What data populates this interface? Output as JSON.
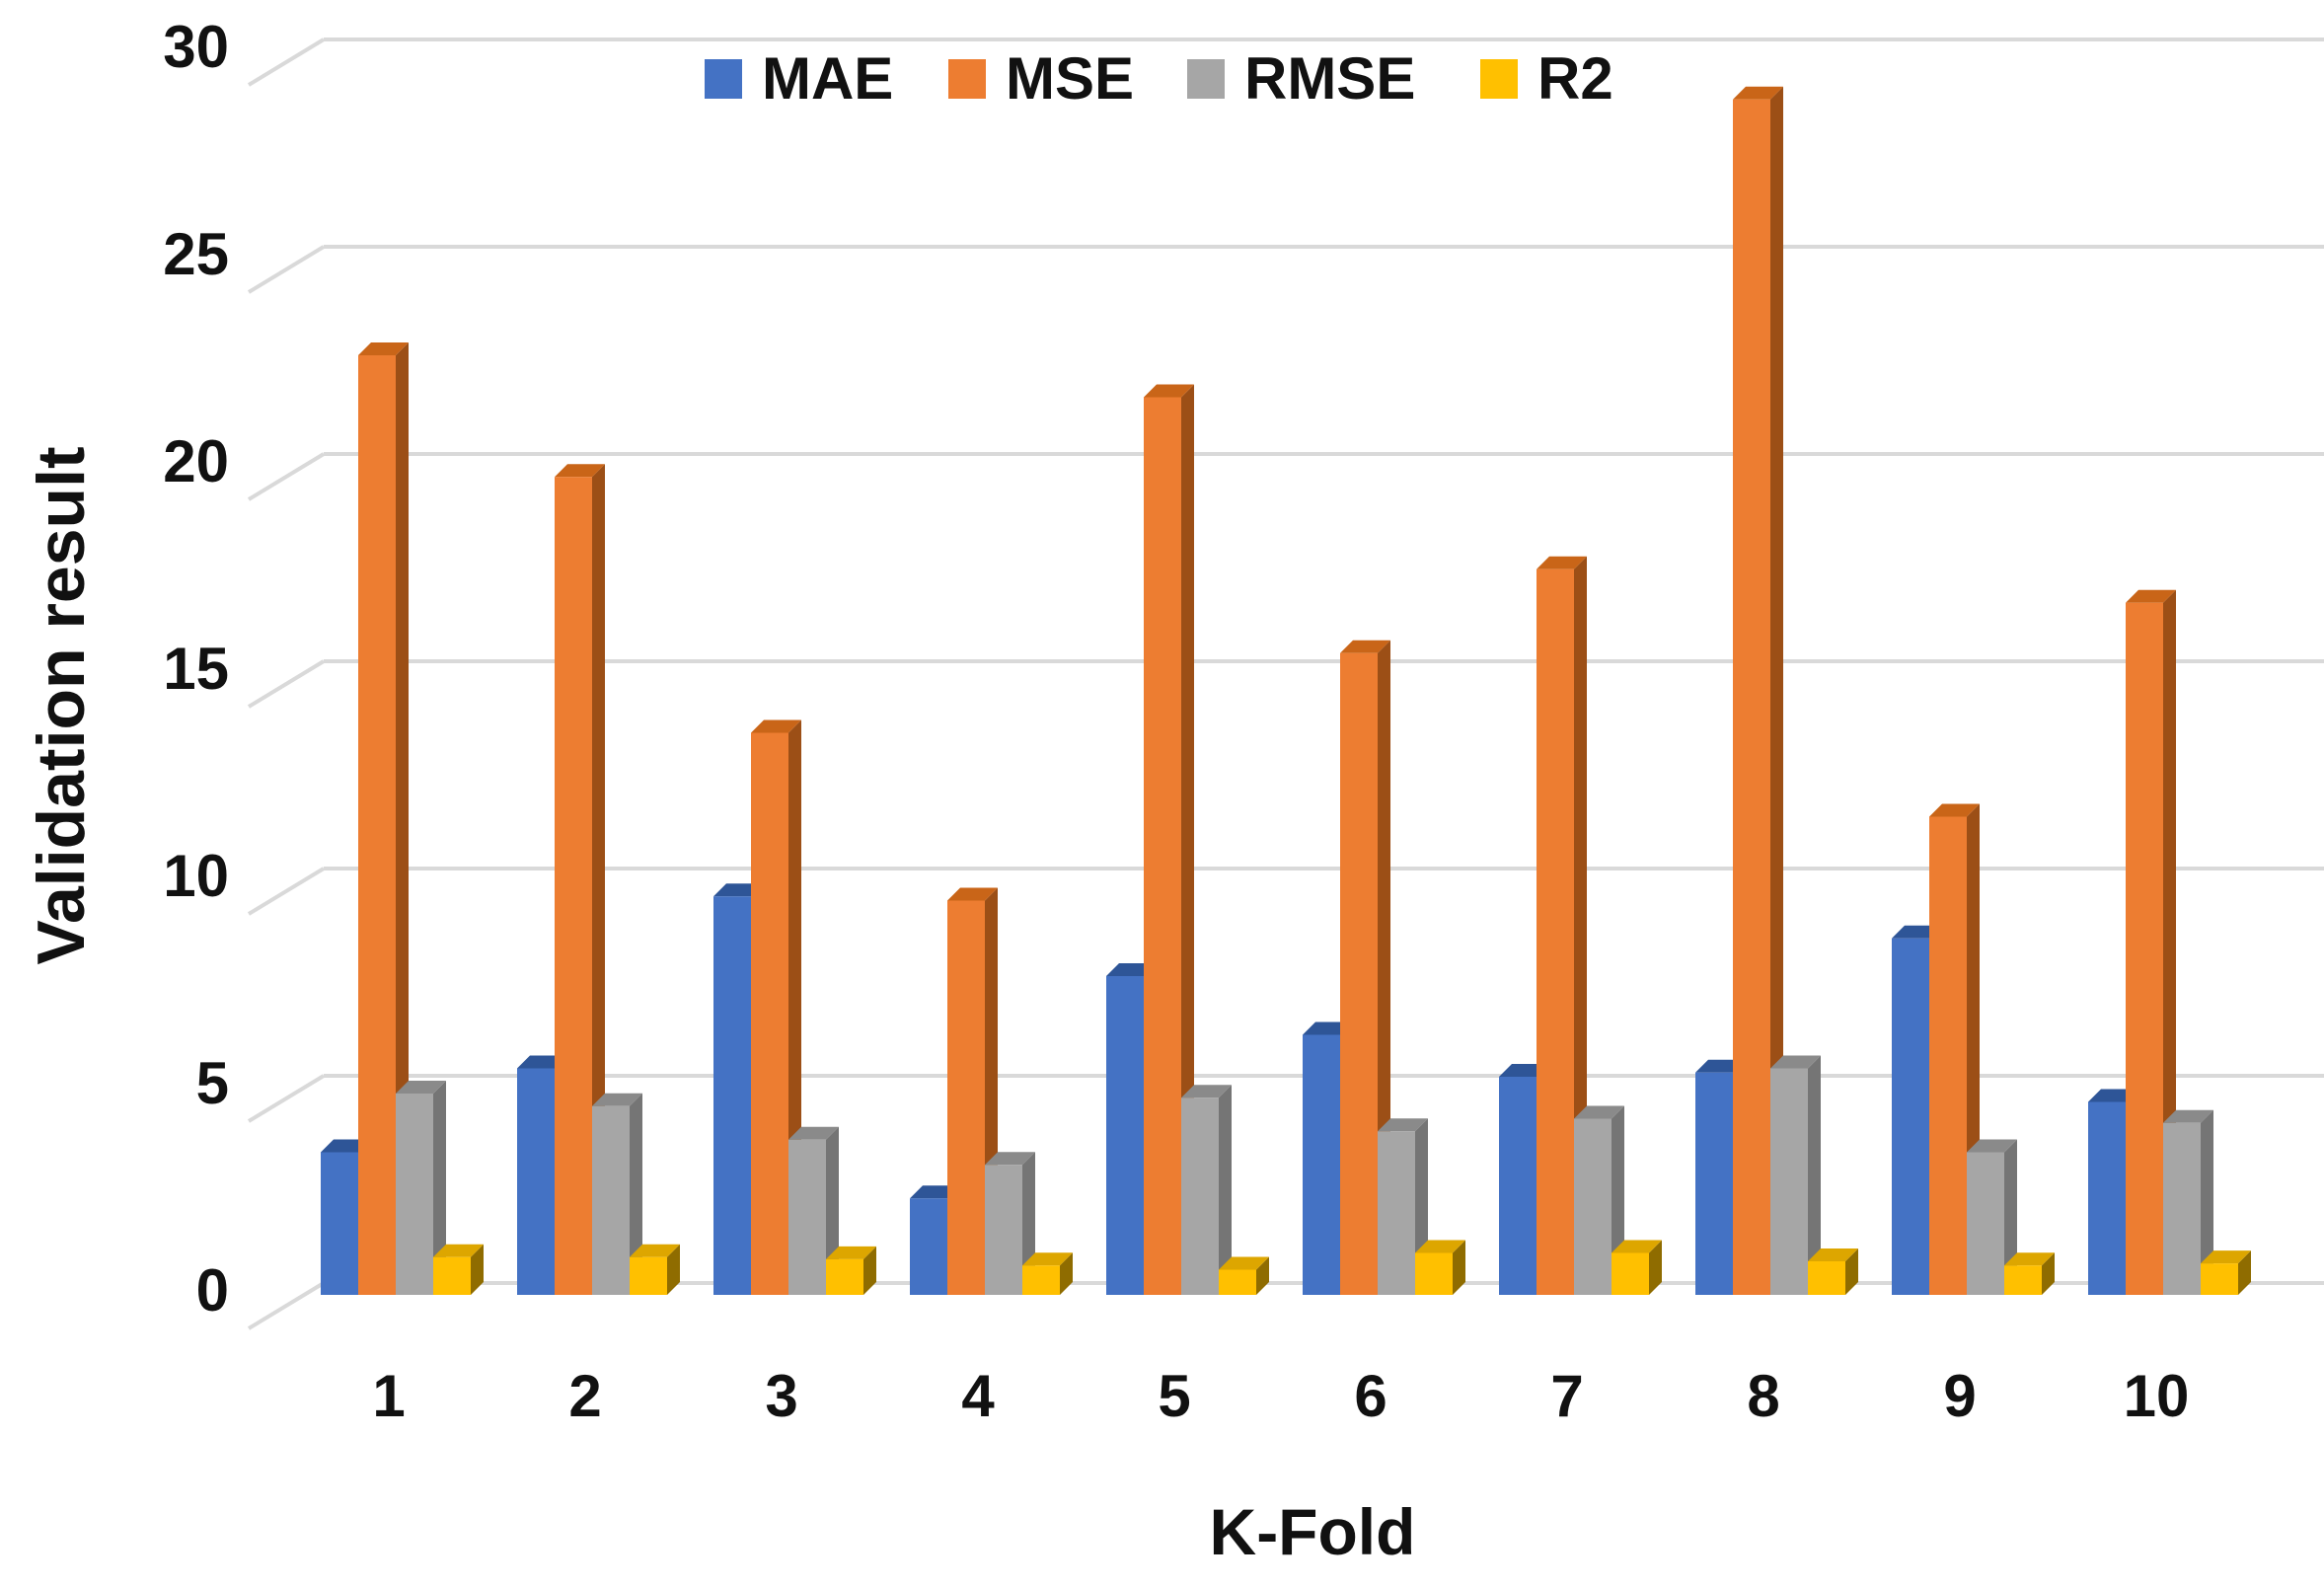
{
  "figure": {
    "y_axis_title": "Validation result",
    "x_axis_title": "K-Fold"
  },
  "legend": {
    "position": "top",
    "items": [
      "MAE",
      "MSE",
      "RMSE",
      "R2"
    ]
  },
  "chart_data": {
    "type": "bar",
    "style": "3d-clustered-column",
    "title": "",
    "xlabel": "K-Fold",
    "ylabel": "Validation result",
    "categories": [
      "1",
      "2",
      "3",
      "4",
      "5",
      "6",
      "7",
      "8",
      "9",
      "10"
    ],
    "yticks": [
      0,
      5,
      10,
      15,
      20,
      25,
      30
    ],
    "ylim": [
      0,
      30
    ],
    "grid": true,
    "gridline_color": "#D9D9D9",
    "background": "#FFFFFF",
    "text_color": "#111111",
    "legend_position": "top-center",
    "series": [
      {
        "name": "MAE",
        "color": "#4472C4",
        "top_color": "#2E5597",
        "side_color": "#26457C",
        "values": [
          3.4,
          5.4,
          9.5,
          2.3,
          7.6,
          6.2,
          5.2,
          5.3,
          8.5,
          4.6
        ]
      },
      {
        "name": "MSE",
        "color": "#ED7D31",
        "top_color": "#C96518",
        "side_color": "#9C4F16",
        "values": [
          22.4,
          19.5,
          13.4,
          9.4,
          21.4,
          15.3,
          17.3,
          28.5,
          11.4,
          16.5
        ]
      },
      {
        "name": "RMSE",
        "color": "#A6A6A6",
        "top_color": "#8A8A8A",
        "side_color": "#757575",
        "values": [
          4.8,
          4.5,
          3.7,
          3.1,
          4.7,
          3.9,
          4.2,
          5.4,
          3.4,
          4.1
        ]
      },
      {
        "name": "R2",
        "color": "#FFC000",
        "top_color": "#DDA600",
        "side_color": "#8F6C00",
        "values": [
          0.9,
          0.9,
          0.85,
          0.7,
          0.6,
          1.0,
          1.0,
          0.8,
          0.7,
          0.75
        ]
      }
    ]
  }
}
